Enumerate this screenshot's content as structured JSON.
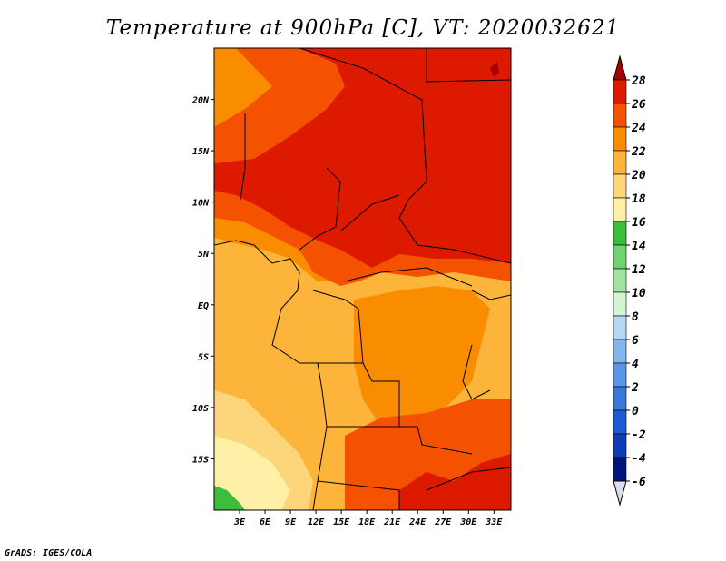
{
  "title": "Temperature at 900hPa [C], VT: 2020032621",
  "credit": "GrADS: IGES/COLA",
  "map": {
    "lat_range": [
      -20,
      25
    ],
    "lon_range": [
      0,
      35
    ],
    "lat_ticks": [
      {
        "value": 20,
        "label": "20N"
      },
      {
        "value": 15,
        "label": "15N"
      },
      {
        "value": 10,
        "label": "10N"
      },
      {
        "value": 5,
        "label": "5N"
      },
      {
        "value": 0,
        "label": "EQ"
      },
      {
        "value": -5,
        "label": "5S"
      },
      {
        "value": -10,
        "label": "10S"
      },
      {
        "value": -15,
        "label": "15S"
      }
    ],
    "lon_ticks": [
      {
        "value": 3,
        "label": "3E"
      },
      {
        "value": 6,
        "label": "6E"
      },
      {
        "value": 9,
        "label": "9E"
      },
      {
        "value": 12,
        "label": "12E"
      },
      {
        "value": 15,
        "label": "15E"
      },
      {
        "value": 18,
        "label": "18E"
      },
      {
        "value": 21,
        "label": "21E"
      },
      {
        "value": 24,
        "label": "24E"
      },
      {
        "value": 27,
        "label": "27E"
      },
      {
        "value": 30,
        "label": "30E"
      },
      {
        "value": 33,
        "label": "33E"
      }
    ]
  },
  "colorbar": {
    "levels": [
      {
        "label": "28",
        "color": "#a50000"
      },
      {
        "label": "26",
        "color": "#dd1900"
      },
      {
        "label": "24",
        "color": "#f45200"
      },
      {
        "label": "22",
        "color": "#fa8c00"
      },
      {
        "label": "20",
        "color": "#fcb43a"
      },
      {
        "label": "18",
        "color": "#fdd67c"
      },
      {
        "label": "16",
        "color": "#fff0a8"
      },
      {
        "label": "14",
        "color": "#3cbe3c"
      },
      {
        "label": "12",
        "color": "#6fd36f"
      },
      {
        "label": "10",
        "color": "#a2e3a2"
      },
      {
        "label": "8",
        "color": "#d4f4d4"
      },
      {
        "label": "6",
        "color": "#b4d7f5"
      },
      {
        "label": "4",
        "color": "#82b6ec"
      },
      {
        "label": "2",
        "color": "#5a96e6"
      },
      {
        "label": "0",
        "color": "#3a78dc"
      },
      {
        "label": "-2",
        "color": "#1e5ad2"
      },
      {
        "label": "-4",
        "color": "#0f3cb4"
      },
      {
        "label": "-6",
        "color": "#00147a"
      }
    ],
    "top_cap_color": "#a50000",
    "bottom_cap_color": "#dcdcf0"
  },
  "colors": {
    "c28": "#a50000",
    "c26": "#dd1900",
    "c24": "#f45200",
    "c22": "#fa8c00",
    "c20": "#fcb43a",
    "c18": "#fdd67c",
    "c16": "#fff0a8",
    "c14": "#3cbe3c",
    "border": "#000000"
  }
}
